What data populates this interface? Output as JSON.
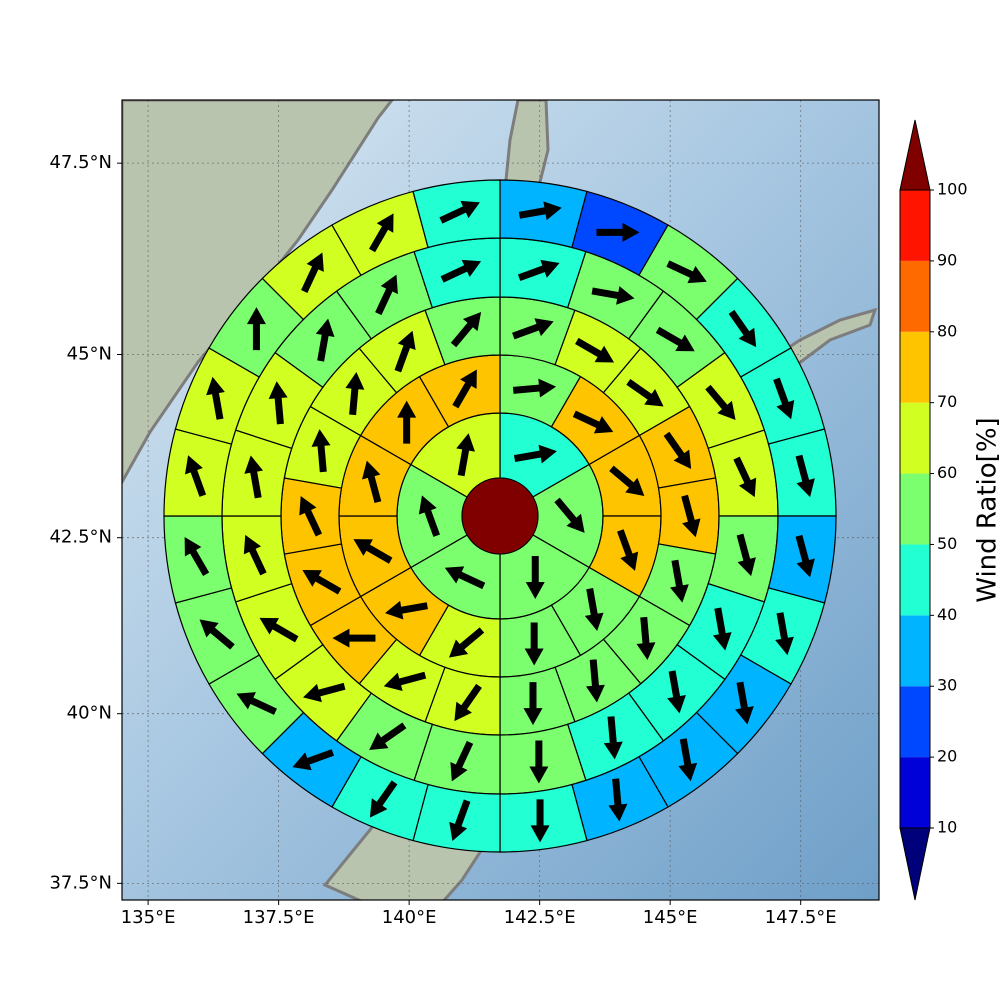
{
  "chart_data": {
    "type": "wind-ring-map",
    "xlim": [
      134.5,
      149.0
    ],
    "ylim": [
      37.25,
      48.3
    ],
    "xticks": [
      {
        "value": 135,
        "label": "135°E"
      },
      {
        "value": 137.5,
        "label": "137.5°E"
      },
      {
        "value": 140,
        "label": "140°E"
      },
      {
        "value": 142.5,
        "label": "142.5°E"
      },
      {
        "value": 145,
        "label": "145°E"
      },
      {
        "value": 147.5,
        "label": "147.5°E"
      }
    ],
    "yticks": [
      {
        "value": 37.5,
        "label": "37.5°N"
      },
      {
        "value": 40,
        "label": "40°N"
      },
      {
        "value": 42.5,
        "label": "42.5°N"
      },
      {
        "value": 45,
        "label": "45°N"
      },
      {
        "value": 47.5,
        "label": "47.5°N"
      }
    ],
    "grid": true,
    "center_value": 105,
    "rings": [
      {
        "values": [
          45,
          55,
          55,
          55,
          55,
          65
        ],
        "directions": [
          80,
          140,
          180,
          295,
          340,
          10
        ]
      },
      {
        "values": [
          55,
          75,
          75,
          75,
          55,
          55,
          65,
          75,
          75,
          75,
          75,
          75
        ],
        "directions": [
          85,
          115,
          130,
          160,
          170,
          180,
          230,
          260,
          300,
          345,
          0,
          30
        ]
      },
      {
        "values": [
          55,
          65,
          65,
          75,
          75,
          55,
          55,
          55,
          55,
          65,
          65,
          75,
          75,
          75,
          65,
          65,
          65,
          55
        ],
        "directions": [
          70,
          120,
          125,
          145,
          165,
          170,
          175,
          175,
          180,
          215,
          255,
          270,
          300,
          335,
          355,
          5,
          20,
          40
        ]
      },
      {
        "values": [
          45,
          55,
          55,
          65,
          65,
          55,
          45,
          45,
          45,
          55,
          55,
          55,
          65,
          65,
          65,
          65,
          65,
          55,
          55,
          45
        ],
        "directions": [
          70,
          100,
          120,
          140,
          155,
          165,
          170,
          170,
          175,
          180,
          205,
          235,
          255,
          300,
          335,
          350,
          355,
          10,
          25,
          65
        ]
      },
      {
        "values": [
          35,
          25,
          55,
          45,
          45,
          45,
          35,
          45,
          35,
          35,
          35,
          45,
          45,
          45,
          35,
          55,
          55,
          55,
          65,
          65,
          55,
          65,
          65,
          45
        ],
        "directions": [
          80,
          90,
          115,
          145,
          160,
          165,
          165,
          170,
          170,
          170,
          175,
          180,
          200,
          215,
          250,
          295,
          310,
          330,
          340,
          350,
          0,
          25,
          30,
          65
        ]
      }
    ],
    "colorbar": {
      "label": "Wind Ratio[%]",
      "ticks": [
        10,
        20,
        30,
        40,
        50,
        60,
        70,
        80,
        90,
        100
      ],
      "colors": [
        "#0000d8",
        "#0048ff",
        "#00b4ff",
        "#22ffd2",
        "#7cff6e",
        "#d2ff22",
        "#ffc400",
        "#ff6a00",
        "#ff1400"
      ],
      "under_color": "#00007a",
      "over_color": "#800000"
    }
  }
}
